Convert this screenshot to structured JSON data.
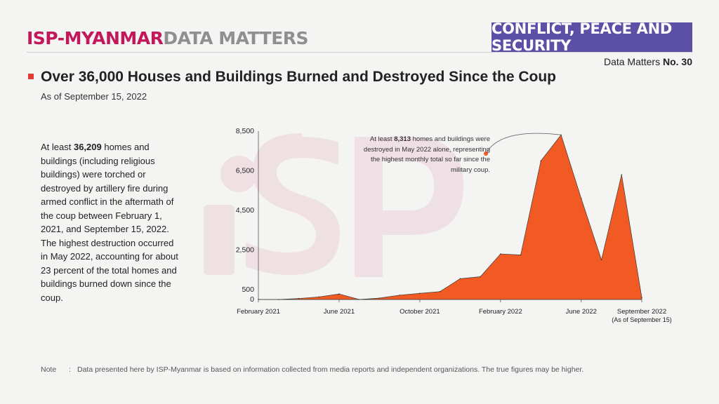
{
  "header": {
    "brand_primary": "ISP-MYANMAR",
    "brand_secondary": "DATA MATTERS",
    "category": "CONFLICT, PEACE AND SECURITY",
    "issue_prefix": "Data Matters",
    "issue_number": "No. 30"
  },
  "title": "Over 36,000 Houses and Buildings Burned and Destroyed Since the Coup",
  "subtitle": "As of September 15, 2022",
  "summary": {
    "before": "At least ",
    "bold": "36,209",
    "after": " homes and buildings (including religious buildings) were torched or destroyed by artillery fire during armed conflict in the aftermath of the coup between February 1, 2021, and September 15, 2022. The highest destruction occurred in May 2022, accounting for about 23 percent of the total homes and buildings burned down since the coup."
  },
  "annotation": {
    "before": "At least ",
    "bold": "8,313",
    "after": " homes and buildings were destroyed in May 2022 alone, representing the highest monthly total so far since the military coup."
  },
  "note": {
    "label": "Note",
    "text": "Data presented here by ISP-Myanmar is based on information collected from media reports and independent organizations. The true figures may be higher."
  },
  "colors": {
    "area": "#f15a22",
    "brand": "#c2185b",
    "category_bg": "#5c50a6",
    "marker": "#e53935"
  },
  "chart_data": {
    "type": "area",
    "categories": [
      "February 2021",
      "March 2021",
      "April 2021",
      "May 2021",
      "June 2021",
      "July 2021",
      "August 2021",
      "September 2021",
      "October 2021",
      "November 2021",
      "December 2021",
      "January 2022",
      "February 2022",
      "March 2022",
      "April 2022",
      "May 2022",
      "June 2022",
      "July 2022",
      "August 2022",
      "September 2022"
    ],
    "values": [
      0,
      0,
      50,
      130,
      280,
      0,
      70,
      220,
      310,
      400,
      1050,
      1150,
      2300,
      2250,
      7000,
      8313,
      5100,
      2000,
      6300,
      100
    ],
    "tick_labels": [
      {
        "index": 0,
        "label": "February 2021"
      },
      {
        "index": 4,
        "label": "June 2021"
      },
      {
        "index": 8,
        "label": "October 2021"
      },
      {
        "index": 12,
        "label": "February 2022"
      },
      {
        "index": 16,
        "label": "June 2022"
      },
      {
        "index": 19,
        "label": "September 2022",
        "sublabel": "(As of September 15)"
      }
    ],
    "yticks": [
      0,
      500,
      2500,
      4500,
      6500,
      8500
    ],
    "ytick_labels": [
      "0",
      "500",
      "2,500",
      "4,500",
      "6,500",
      "8,500"
    ],
    "ylim": [
      0,
      8500
    ],
    "highlight_index": 15,
    "grid": false,
    "title": "",
    "xlabel": "",
    "ylabel": ""
  }
}
